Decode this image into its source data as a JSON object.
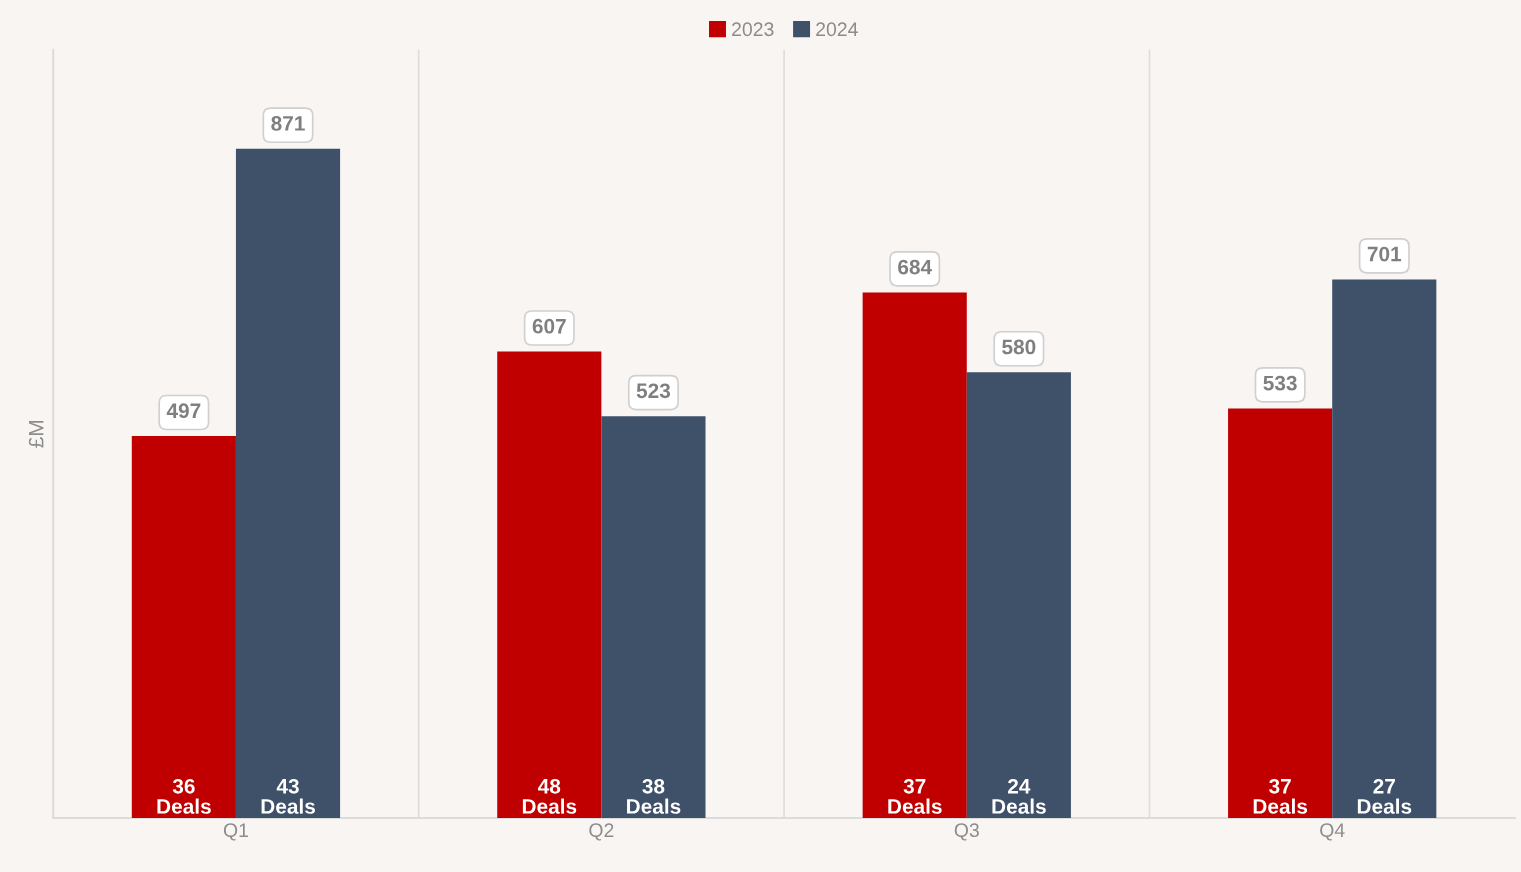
{
  "chart_data": {
    "type": "bar",
    "ylabel": "£M",
    "categories": [
      "Q1",
      "Q2",
      "Q3",
      "Q4"
    ],
    "series": [
      {
        "name": "2023",
        "color": "#c00000",
        "values": [
          497,
          607,
          684,
          533
        ]
      },
      {
        "name": "2024",
        "color": "#3f5069",
        "values": [
          871,
          523,
          580,
          701
        ]
      }
    ],
    "ylim": [
      0,
      1000
    ],
    "data_labels": true,
    "grid": "x",
    "legend": "top",
    "tick_labels": "x",
    "annotations": [
      {
        "text": "36\nDeals",
        "x": "Q1",
        "y": 0
      },
      {
        "text": "43\nDeals",
        "x": "Q1",
        "y": 0
      },
      {
        "text": "48\nDeals",
        "x": "Q2",
        "y": 0
      },
      {
        "text": "38\nDeals",
        "x": "Q2",
        "y": 0
      },
      {
        "text": "37\nDeals",
        "x": "Q3",
        "y": 0
      },
      {
        "text": "24\nDeals",
        "x": "Q3",
        "y": 0
      },
      {
        "text": "37\nDeals",
        "x": "Q4",
        "y": 0
      },
      {
        "text": "27\nDeals",
        "x": "Q4",
        "y": 0
      }
    ]
  }
}
